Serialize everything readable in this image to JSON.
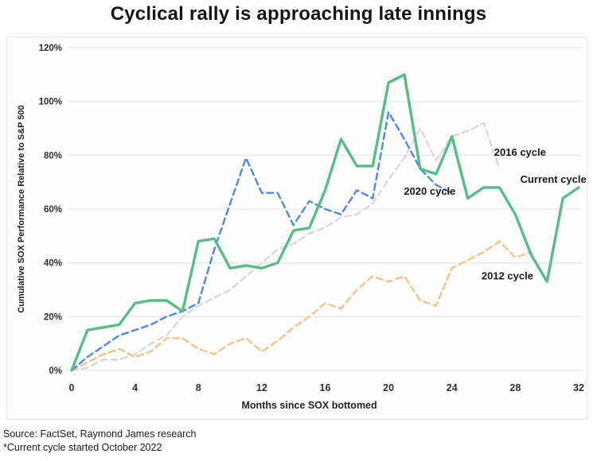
{
  "title": "Cyclical rally is approaching late innings",
  "footer": {
    "source": "Source: FactSet, Raymond James research",
    "note": "*Current cycle started October 2022"
  },
  "colors": {
    "current": "#57bd86",
    "cycle2020": "#4f87e8",
    "cycle2016": "#d9d9d9",
    "cycle2012": "#f5c28c",
    "grid": "#e9e9e9",
    "tick_text": "#2e2e2e"
  },
  "chart_data": {
    "type": "line",
    "title": "Cyclical rally is approaching late innings",
    "xlabel": "Months since SOX bottomed",
    "ylabel": "Cumulative SOX Performance Relative to S&P 500",
    "xlim": [
      0,
      32.5
    ],
    "ylim": [
      0,
      120
    ],
    "grid": "horizontal-only",
    "legend_position": "inline-annotations",
    "x_tick_values": [
      0,
      4,
      8,
      12,
      16,
      20,
      24,
      28,
      32
    ],
    "y_tick_values": [
      0,
      20,
      40,
      60,
      80,
      100,
      120
    ],
    "y_tick_labels": [
      "0%",
      "20%",
      "40%",
      "60%",
      "80%",
      "100%",
      "120%"
    ],
    "x_step_months": 1,
    "series": [
      {
        "name": "2016 cycle",
        "style": "dashed",
        "color_key": "cycle2016",
        "values": [
          0,
          1,
          4,
          4,
          6,
          10,
          13,
          20,
          24,
          27,
          30,
          35,
          40,
          45,
          47,
          51,
          53,
          57,
          58,
          62,
          71,
          79,
          90,
          78,
          87,
          89,
          92,
          75
        ]
      },
      {
        "name": "2012 cycle",
        "style": "dashed",
        "color_key": "cycle2012",
        "values": [
          0,
          3,
          6,
          8,
          5,
          7,
          12,
          12,
          8,
          6,
          10,
          12,
          7,
          11,
          16,
          20,
          25,
          23,
          30,
          35,
          33,
          35,
          26,
          24,
          38,
          41,
          44,
          48,
          42,
          44
        ]
      },
      {
        "name": "2020 cycle",
        "style": "dashed",
        "color_key": "cycle2020",
        "values": [
          0,
          5,
          9,
          13,
          15,
          17,
          20,
          22,
          25,
          45,
          62,
          79,
          66,
          66,
          54,
          63,
          60,
          58,
          67,
          64,
          96,
          86,
          75,
          69,
          66
        ]
      },
      {
        "name": "Current cycle",
        "style": "solid",
        "color_key": "current",
        "values": [
          0,
          15,
          16,
          17,
          25,
          26,
          26,
          22,
          48,
          49,
          38,
          39,
          38,
          40,
          52,
          53,
          67,
          86,
          76,
          76,
          107,
          110,
          75,
          73,
          87,
          64,
          68,
          68,
          58,
          43,
          33,
          64,
          68
        ]
      }
    ],
    "annotations": [
      {
        "text": "2016 cycle",
        "month": 28.3,
        "pct": 81
      },
      {
        "text": "Current cycle",
        "month": 30.4,
        "pct": 71
      },
      {
        "text": "2020 cycle",
        "month": 22.6,
        "pct": 66.5
      },
      {
        "text": "2012 cycle",
        "month": 27.5,
        "pct": 35
      }
    ]
  }
}
